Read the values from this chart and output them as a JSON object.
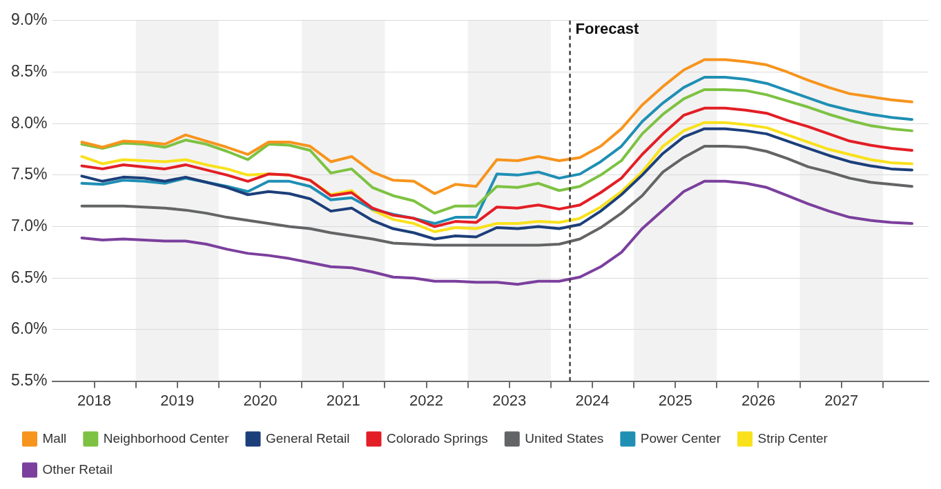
{
  "chart_data": {
    "type": "line",
    "ylim": [
      5.5,
      9.0
    ],
    "yticks": [
      {
        "value": 5.5,
        "label": "5.5%"
      },
      {
        "value": 6.0,
        "label": "6.0%"
      },
      {
        "value": 6.5,
        "label": "6.5%"
      },
      {
        "value": 7.0,
        "label": "7.0%"
      },
      {
        "value": 7.5,
        "label": "7.5%"
      },
      {
        "value": 8.0,
        "label": "8.0%"
      },
      {
        "value": 8.5,
        "label": "8.5%"
      },
      {
        "value": 9.0,
        "label": "9.0%"
      }
    ],
    "xlim": [
      2018,
      2028.55
    ],
    "xticks": [
      {
        "value": 2018.5,
        "label": "2018"
      },
      {
        "value": 2019,
        "label": null
      },
      {
        "value": 2019.5,
        "label": "2019"
      },
      {
        "value": 2020,
        "label": null
      },
      {
        "value": 2020.5,
        "label": "2020"
      },
      {
        "value": 2021,
        "label": null
      },
      {
        "value": 2021.5,
        "label": "2021"
      },
      {
        "value": 2022,
        "label": null
      },
      {
        "value": 2022.5,
        "label": "2022"
      },
      {
        "value": 2023,
        "label": null
      },
      {
        "value": 2023.5,
        "label": "2023"
      },
      {
        "value": 2024,
        "label": null
      },
      {
        "value": 2024.5,
        "label": "2024"
      },
      {
        "value": 2025,
        "label": null
      },
      {
        "value": 2025.5,
        "label": "2025"
      },
      {
        "value": 2026,
        "label": null
      },
      {
        "value": 2026.5,
        "label": "2026"
      },
      {
        "value": 2027,
        "label": null
      },
      {
        "value": 2027.5,
        "label": "2027"
      },
      {
        "value": 2028,
        "label": null
      }
    ],
    "x": [
      2018.35,
      2018.6,
      2018.85,
      2019.1,
      2019.35,
      2019.6,
      2019.85,
      2020.1,
      2020.35,
      2020.6,
      2020.85,
      2021.1,
      2021.35,
      2021.6,
      2021.85,
      2022.1,
      2022.35,
      2022.6,
      2022.85,
      2023.1,
      2023.35,
      2023.6,
      2023.85,
      2024.1,
      2024.35,
      2024.6,
      2024.85,
      2025.1,
      2025.35,
      2025.6,
      2025.85,
      2026.1,
      2026.35,
      2026.6,
      2026.85,
      2027.1,
      2027.35,
      2027.6,
      2027.85,
      2028.1,
      2028.35
    ],
    "series": [
      {
        "name": "Mall",
        "color": "#f7941d",
        "values": [
          7.82,
          7.77,
          7.83,
          7.82,
          7.8,
          7.89,
          7.83,
          7.77,
          7.7,
          7.82,
          7.82,
          7.78,
          7.63,
          7.68,
          7.53,
          7.45,
          7.44,
          7.32,
          7.41,
          7.39,
          7.65,
          7.64,
          7.68,
          7.64,
          7.67,
          7.78,
          7.95,
          8.18,
          8.36,
          8.52,
          8.62,
          8.62,
          8.6,
          8.57,
          8.5,
          8.42,
          8.35,
          8.29,
          8.26,
          8.23,
          8.21
        ]
      },
      {
        "name": "Neighborhood Center",
        "color": "#7dc242",
        "values": [
          7.8,
          7.76,
          7.81,
          7.8,
          7.77,
          7.84,
          7.8,
          7.73,
          7.65,
          7.8,
          7.79,
          7.74,
          7.52,
          7.56,
          7.38,
          7.3,
          7.25,
          7.13,
          7.2,
          7.2,
          7.39,
          7.38,
          7.42,
          7.35,
          7.39,
          7.5,
          7.64,
          7.9,
          8.09,
          8.24,
          8.33,
          8.33,
          8.32,
          8.28,
          8.22,
          8.16,
          8.09,
          8.03,
          7.98,
          7.95,
          7.93
        ]
      },
      {
        "name": "General Retail",
        "color": "#1c3f7a",
        "values": [
          7.49,
          7.44,
          7.48,
          7.47,
          7.44,
          7.48,
          7.43,
          7.38,
          7.31,
          7.34,
          7.32,
          7.27,
          7.15,
          7.18,
          7.06,
          6.98,
          6.94,
          6.88,
          6.91,
          6.9,
          6.99,
          6.98,
          7.0,
          6.98,
          7.02,
          7.15,
          7.31,
          7.5,
          7.71,
          7.87,
          7.95,
          7.95,
          7.93,
          7.9,
          7.83,
          7.76,
          7.69,
          7.63,
          7.59,
          7.56,
          7.55
        ]
      },
      {
        "name": "Colorado Springs",
        "color": "#e31e26",
        "values": [
          7.59,
          7.56,
          7.6,
          7.58,
          7.56,
          7.6,
          7.55,
          7.5,
          7.44,
          7.51,
          7.5,
          7.45,
          7.3,
          7.33,
          7.18,
          7.11,
          7.08,
          7.0,
          7.05,
          7.04,
          7.19,
          7.18,
          7.21,
          7.17,
          7.21,
          7.33,
          7.47,
          7.7,
          7.9,
          8.08,
          8.15,
          8.15,
          8.13,
          8.1,
          8.03,
          7.97,
          7.9,
          7.83,
          7.79,
          7.76,
          7.74
        ]
      },
      {
        "name": "United States",
        "color": "#636466",
        "values": [
          7.2,
          7.2,
          7.2,
          7.19,
          7.18,
          7.16,
          7.13,
          7.09,
          7.06,
          7.03,
          7.0,
          6.98,
          6.94,
          6.91,
          6.88,
          6.84,
          6.83,
          6.82,
          6.82,
          6.82,
          6.82,
          6.82,
          6.82,
          6.83,
          6.88,
          6.99,
          7.13,
          7.3,
          7.53,
          7.67,
          7.78,
          7.78,
          7.77,
          7.73,
          7.66,
          7.58,
          7.53,
          7.47,
          7.43,
          7.41,
          7.39
        ]
      },
      {
        "name": "Power Center",
        "color": "#1f8fb4",
        "values": [
          7.42,
          7.41,
          7.45,
          7.44,
          7.42,
          7.47,
          7.43,
          7.39,
          7.34,
          7.44,
          7.44,
          7.39,
          7.26,
          7.28,
          7.17,
          7.12,
          7.08,
          7.03,
          7.09,
          7.09,
          7.51,
          7.5,
          7.53,
          7.47,
          7.51,
          7.63,
          7.78,
          8.02,
          8.2,
          8.35,
          8.45,
          8.45,
          8.43,
          8.39,
          8.32,
          8.25,
          8.18,
          8.13,
          8.09,
          8.06,
          8.04
        ]
      },
      {
        "name": "Strip Center",
        "color": "#f9e11b",
        "values": [
          7.68,
          7.61,
          7.65,
          7.64,
          7.63,
          7.65,
          7.6,
          7.56,
          7.5,
          7.51,
          7.5,
          7.45,
          7.31,
          7.35,
          7.16,
          7.07,
          7.03,
          6.95,
          6.99,
          6.98,
          7.03,
          7.03,
          7.05,
          7.04,
          7.08,
          7.19,
          7.34,
          7.53,
          7.78,
          7.93,
          8.01,
          8.01,
          7.99,
          7.96,
          7.89,
          7.82,
          7.75,
          7.7,
          7.65,
          7.62,
          7.61
        ]
      },
      {
        "name": "Other Retail",
        "color": "#7b3f9d",
        "values": [
          6.89,
          6.87,
          6.88,
          6.87,
          6.86,
          6.86,
          6.83,
          6.78,
          6.74,
          6.72,
          6.69,
          6.65,
          6.61,
          6.6,
          6.56,
          6.51,
          6.5,
          6.47,
          6.47,
          6.46,
          6.46,
          6.44,
          6.47,
          6.47,
          6.51,
          6.61,
          6.75,
          6.98,
          7.16,
          7.34,
          7.44,
          7.44,
          7.42,
          7.38,
          7.3,
          7.22,
          7.15,
          7.09,
          7.06,
          7.04,
          7.03
        ]
      }
    ],
    "ref_lines": [
      {
        "axis": "x",
        "value": 2024.23,
        "label": "Forecast",
        "color": "#404040",
        "line_style": "dashed"
      }
    ],
    "bands": [
      {
        "axis": "x",
        "from": 2019,
        "to": 2020,
        "color": "#f2f2f2"
      },
      {
        "axis": "x",
        "from": 2021,
        "to": 2022,
        "color": "#f2f2f2"
      },
      {
        "axis": "x",
        "from": 2023,
        "to": 2024,
        "color": "#f2f2f2"
      },
      {
        "axis": "x",
        "from": 2025,
        "to": 2026,
        "color": "#f2f2f2"
      },
      {
        "axis": "x",
        "from": 2027,
        "to": 2028,
        "color": "#f2f2f2"
      }
    ],
    "grid": "y",
    "legend": "bottom",
    "marker": "none",
    "line_style": "solid"
  }
}
